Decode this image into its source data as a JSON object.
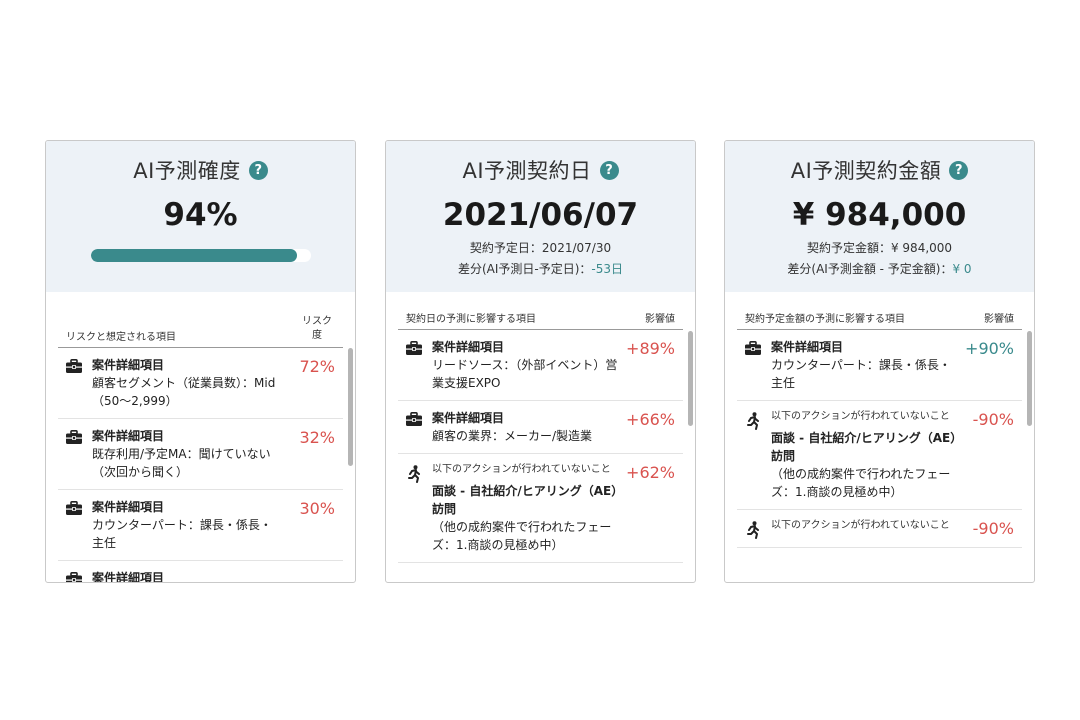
{
  "cards": [
    {
      "title": "AI予測確度",
      "value": "94%",
      "progress": 0.94,
      "list_header_left": "リスクと想定される項目",
      "list_header_right": "リスク度",
      "items": [
        {
          "icon": "briefcase-icon",
          "title": "案件詳細項目",
          "desc": "顧客セグメント（従業員数）：Mid（50〜2,999）",
          "value": "72%"
        },
        {
          "icon": "briefcase-icon",
          "title": "案件詳細項目",
          "desc": "既存利用/予定MA：聞けていない（次回から聞く）",
          "value": "32%"
        },
        {
          "icon": "briefcase-icon",
          "title": "案件詳細項目",
          "desc": "カウンターパート：課長・係長・主任",
          "value": "30%"
        },
        {
          "icon": "briefcase-icon",
          "title": "案件詳細項目",
          "desc": "",
          "value": ""
        }
      ]
    },
    {
      "title": "AI予測契約日",
      "value": "2021/06/07",
      "sub1_label": "契約予定日：",
      "sub1_value": "2021/07/30",
      "sub2_label": "差分(AI予測日-予定日)：",
      "sub2_value": "-53日",
      "list_header_left": "契約日の予測に影響する項目",
      "list_header_right": "影響値",
      "items": [
        {
          "icon": "briefcase-icon",
          "title": "案件詳細項目",
          "desc": "リードソース：（外部イベント）営業支援EXPO",
          "value": "+89%"
        },
        {
          "icon": "briefcase-icon",
          "title": "案件詳細項目",
          "desc": "顧客の業界：メーカー/製造業",
          "value": "+66%"
        },
        {
          "icon": "running-person-icon",
          "small": "以下のアクションが行われていないこと",
          "action": "面談 - 自社紹介/ヒアリング（AE）訪問",
          "desc": "（他の成約案件で行われたフェーズ：1.商談の見極め中）",
          "value": "+62%"
        }
      ]
    },
    {
      "title": "AI予測契約金額",
      "value": "¥ 984,000",
      "sub1_label": "契約予定金額：",
      "sub1_value": "¥ 984,000",
      "sub2_label": "差分(AI予測金額 - 予定金額)：",
      "sub2_value": "¥ 0",
      "list_header_left": "契約予定金額の予測に影響する項目",
      "list_header_right": "影響値",
      "items": [
        {
          "icon": "briefcase-icon",
          "title": "案件詳細項目",
          "desc": "カウンターパート：課長・係長・主任",
          "value": "+90%"
        },
        {
          "icon": "running-person-icon",
          "small": "以下のアクションが行われていないこと",
          "action": "面談 - 自社紹介/ヒアリング（AE）訪問",
          "desc": "（他の成約案件で行われたフェーズ：1.商談の見極め中）",
          "value": "-90%"
        },
        {
          "icon": "running-person-icon",
          "small": "以下のアクションが行われていないこと",
          "value": "-90%"
        }
      ]
    }
  ],
  "colors": {
    "accent": "#3a8a8c",
    "negative": "#d9534f",
    "header_bg": "#edf2f7"
  }
}
